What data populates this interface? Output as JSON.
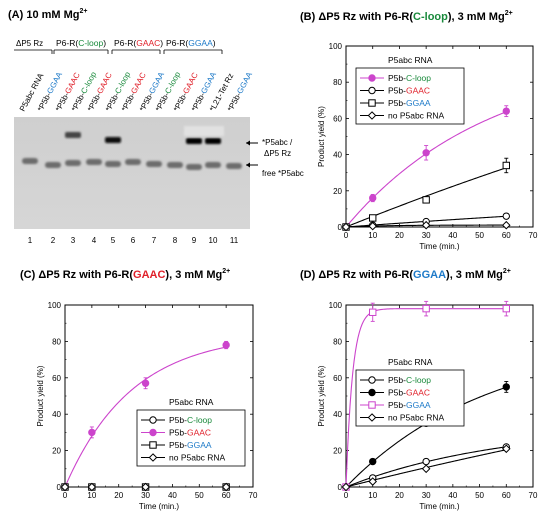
{
  "colors": {
    "cloop": "#1a8a3c",
    "gaac": "#e0202a",
    "ggaa": "#1e7ac8",
    "magenta": "#cc44cc",
    "black": "#000000"
  },
  "gel": {
    "title": "(A) 10 mM Mg",
    "title_sup": "2+",
    "top_labels": [
      {
        "text": "ΔP5 Rz",
        "color": "#000000"
      },
      {
        "text": "P6-R(",
        "color": "#000000"
      }
    ],
    "groups": [
      {
        "prefix": "P6-R(",
        "name": "C-loop",
        "suffix": ")",
        "color": "#1a8a3c"
      },
      {
        "prefix": "P6-R(",
        "name": "GAAC",
        "suffix": ")",
        "color": "#e0202a"
      },
      {
        "prefix": "P6-R(",
        "name": "GGAA",
        "suffix": ")",
        "color": "#1e7ac8"
      }
    ],
    "dp5_label": "ΔP5 Rz",
    "lanes": [
      {
        "pre": "P5abc RNA",
        "name": "",
        "color": "#000000"
      },
      {
        "pre": "*P5b-",
        "name": "GGAA",
        "color": "#1e7ac8"
      },
      {
        "pre": "*P5b-",
        "name": "GAAC",
        "color": "#e0202a"
      },
      {
        "pre": "*P5b-",
        "name": "C-loop",
        "color": "#1a8a3c"
      },
      {
        "pre": "*P5b-",
        "name": "GAAC",
        "color": "#e0202a"
      },
      {
        "pre": "*P5b-",
        "name": "C-loop",
        "color": "#1a8a3c"
      },
      {
        "pre": "*P5b-",
        "name": "GAAC",
        "color": "#e0202a"
      },
      {
        "pre": "*P5b-",
        "name": "GGAA",
        "color": "#1e7ac8"
      },
      {
        "pre": "*P5b-",
        "name": "C-loop",
        "color": "#1a8a3c"
      },
      {
        "pre": "*P5b-",
        "name": "GAAC",
        "color": "#e0202a"
      },
      {
        "pre": "*P5b-",
        "name": "GGAA",
        "color": "#1e7ac8"
      },
      {
        "pre": "*L21-Tet Rz",
        "name": "",
        "color": "#000000"
      },
      {
        "pre": "*P5b-",
        "name": "GGAA",
        "color": "#1e7ac8"
      }
    ],
    "lane_numbers": [
      "1",
      "2",
      "3",
      "4",
      "5",
      "6",
      "7",
      "8",
      "9",
      "10",
      "11"
    ],
    "complex_label_1": "*P5abc /",
    "complex_label_2": "ΔP5 Rz",
    "free_label": "free *P5abc"
  },
  "chart_data": [
    {
      "id": "B",
      "type": "line",
      "title_pre": "(B) ΔP5 Rz with P6-R(",
      "title_name": "C-loop",
      "title_name_color": "#1a8a3c",
      "title_post": "), 3 mM Mg",
      "title_sup": "2+",
      "xlabel": "Time (min.)",
      "ylabel": "Product yield (%)",
      "xlim": [
        0,
        70
      ],
      "ylim": [
        0,
        100
      ],
      "xticks": [
        0,
        10,
        20,
        30,
        40,
        50,
        60,
        70
      ],
      "yticks": [
        0,
        20,
        40,
        60,
        80,
        100
      ],
      "legend_title": "P5abc RNA",
      "series": [
        {
          "pre": "P5b-",
          "name": "C-loop",
          "name_color": "#1a8a3c",
          "color": "#cc44cc",
          "marker": "circle-filled",
          "x": [
            0,
            10,
            30,
            60
          ],
          "y": [
            0,
            16,
            41,
            64
          ],
          "err": [
            0,
            2,
            4,
            3
          ]
        },
        {
          "pre": "P5b-",
          "name": "GAAC",
          "name_color": "#e0202a",
          "color": "#000000",
          "marker": "circle-open",
          "x": [
            0,
            10,
            30,
            60
          ],
          "y": [
            0,
            1,
            3,
            6
          ],
          "err": [
            0,
            0.5,
            0.8,
            1
          ]
        },
        {
          "pre": "P5b-",
          "name": "GGAA",
          "name_color": "#1e7ac8",
          "color": "#000000",
          "marker": "square-open",
          "x": [
            0,
            10,
            30,
            60
          ],
          "y": [
            0,
            5,
            15,
            34
          ],
          "err": [
            0,
            1,
            1.5,
            4
          ]
        },
        {
          "pre": "",
          "name": "no P5abc RNA",
          "name_color": "#000000",
          "color": "#000000",
          "marker": "diamond-open",
          "x": [
            0,
            10,
            30,
            60
          ],
          "y": [
            0,
            0.5,
            1,
            1
          ],
          "err": [
            0,
            0,
            0,
            0
          ]
        }
      ]
    },
    {
      "id": "C",
      "type": "line",
      "title_pre": "(C) ΔP5 Rz with P6-R(",
      "title_name": "GAAC",
      "title_name_color": "#e0202a",
      "title_post": "), 3 mM Mg",
      "title_sup": "2+",
      "xlabel": "Time (min.)",
      "ylabel": "Product yield (%)",
      "xlim": [
        0,
        70
      ],
      "ylim": [
        0,
        100
      ],
      "xticks": [
        0,
        10,
        20,
        30,
        40,
        50,
        60,
        70
      ],
      "yticks": [
        0,
        20,
        40,
        60,
        80,
        100
      ],
      "legend_title": "P5abc RNA",
      "series": [
        {
          "pre": "P5b-",
          "name": "C-loop",
          "name_color": "#1a8a3c",
          "color": "#000000",
          "marker": "circle-open",
          "x": [
            0,
            10,
            30,
            60
          ],
          "y": [
            0,
            0,
            0,
            0
          ],
          "err": [
            0,
            0,
            0,
            0
          ]
        },
        {
          "pre": "P5b-",
          "name": "GAAC",
          "name_color": "#e0202a",
          "color": "#cc44cc",
          "marker": "circle-filled",
          "x": [
            0,
            10,
            30,
            60
          ],
          "y": [
            0,
            30,
            57,
            78
          ],
          "err": [
            0,
            3,
            3,
            2
          ]
        },
        {
          "pre": "P5b-",
          "name": "GGAA",
          "name_color": "#1e7ac8",
          "color": "#000000",
          "marker": "square-open",
          "x": [
            0,
            10,
            30,
            60
          ],
          "y": [
            0,
            0,
            0,
            0
          ],
          "err": [
            0,
            0,
            0,
            0
          ]
        },
        {
          "pre": "",
          "name": "no P5abc RNA",
          "name_color": "#000000",
          "color": "#000000",
          "marker": "diamond-open",
          "x": [
            0,
            10,
            30,
            60
          ],
          "y": [
            0,
            0,
            0,
            0
          ],
          "err": [
            0,
            0,
            0,
            0
          ]
        }
      ]
    },
    {
      "id": "D",
      "type": "line",
      "title_pre": "(D) ΔP5 Rz with P6-R(",
      "title_name": "GGAA",
      "title_name_color": "#1e7ac8",
      "title_post": "), 3 mM Mg",
      "title_sup": "2+",
      "xlabel": "Time (min.)",
      "ylabel": "Product yield (%)",
      "xlim": [
        0,
        70
      ],
      "ylim": [
        0,
        100
      ],
      "xticks": [
        0,
        10,
        20,
        30,
        40,
        50,
        60,
        70
      ],
      "yticks": [
        0,
        20,
        40,
        60,
        80,
        100
      ],
      "legend_title": "P5abc RNA",
      "series": [
        {
          "pre": "P5b-",
          "name": "C-loop",
          "name_color": "#1a8a3c",
          "color": "#000000",
          "marker": "circle-open",
          "x": [
            0,
            10,
            30,
            60
          ],
          "y": [
            0,
            5,
            14,
            22
          ],
          "err": [
            0,
            0.5,
            1,
            1
          ]
        },
        {
          "pre": "P5b-",
          "name": "GAAC",
          "name_color": "#e0202a",
          "color": "#000000",
          "marker": "circle-filled",
          "x": [
            0,
            10,
            30,
            60
          ],
          "y": [
            0,
            14,
            35,
            55
          ],
          "err": [
            0,
            1,
            1.5,
            3
          ]
        },
        {
          "pre": "P5b-",
          "name": "GGAA",
          "name_color": "#1e7ac8",
          "color": "#cc44cc",
          "marker": "square-open",
          "x": [
            0,
            10,
            30,
            60
          ],
          "y": [
            0,
            96,
            98,
            98
          ],
          "err": [
            0,
            5,
            4,
            4
          ]
        },
        {
          "pre": "",
          "name": "no P5abc RNA",
          "name_color": "#000000",
          "color": "#000000",
          "marker": "diamond-open",
          "x": [
            0,
            10,
            30,
            60
          ],
          "y": [
            0,
            3,
            10,
            21
          ],
          "err": [
            0,
            0.5,
            1,
            1
          ]
        }
      ]
    }
  ]
}
